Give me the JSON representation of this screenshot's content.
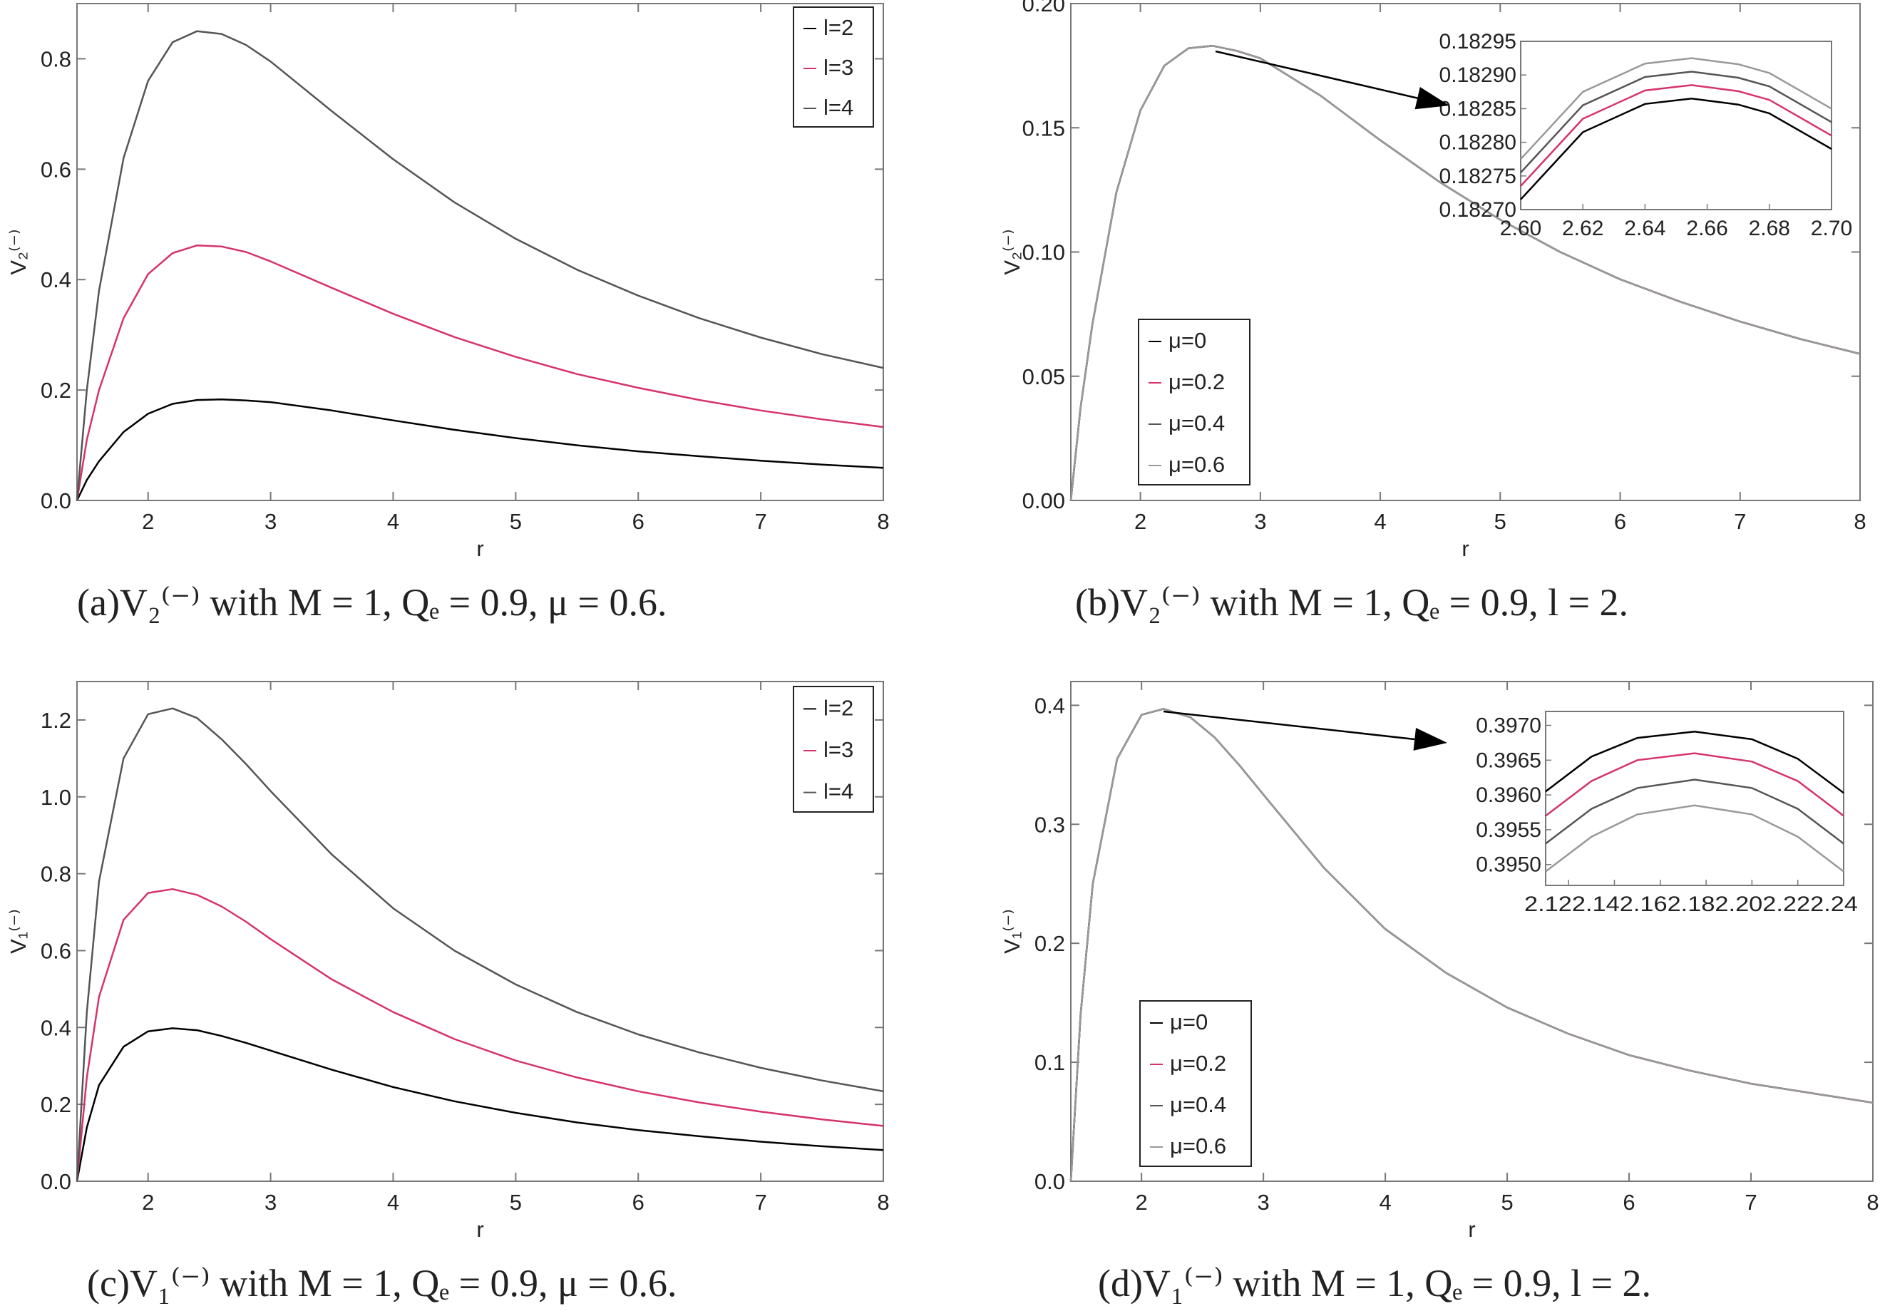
{
  "chart_data": [
    {
      "type": "line",
      "panel": "a",
      "caption": "(a)V₂⁽⁻⁾ with M = 1, Qₑ = 0.9, μ = 0.6.",
      "xlabel": "r",
      "ylabel": "V₂⁽⁻⁾",
      "xlim": [
        1.42,
        8
      ],
      "ylim": [
        0,
        0.9
      ],
      "xticks": [
        "2",
        "3",
        "4",
        "5",
        "6",
        "7",
        "8"
      ],
      "yticks": [
        "0.0",
        "0.2",
        "0.4",
        "0.6",
        "0.8"
      ],
      "legend_position": "top-right",
      "series": [
        {
          "name": "l=2",
          "color": "#000000",
          "x": [
            1.42,
            1.5,
            1.6,
            1.8,
            2.0,
            2.2,
            2.4,
            2.6,
            2.8,
            3.0,
            3.5,
            4.0,
            4.5,
            5.0,
            5.5,
            6.0,
            6.5,
            7.0,
            7.5,
            8.0
          ],
          "y": [
            0.0,
            0.037,
            0.071,
            0.124,
            0.157,
            0.175,
            0.182,
            0.183,
            0.181,
            0.178,
            0.163,
            0.145,
            0.128,
            0.113,
            0.1,
            0.089,
            0.08,
            0.072,
            0.065,
            0.059
          ]
        },
        {
          "name": "l=3",
          "color": "#d6336c",
          "x": [
            1.42,
            1.5,
            1.6,
            1.8,
            2.0,
            2.2,
            2.4,
            2.6,
            2.8,
            3.0,
            3.5,
            4.0,
            4.5,
            5.0,
            5.5,
            6.0,
            6.5,
            7.0,
            7.5,
            8.0
          ],
          "y": [
            0.0,
            0.11,
            0.2,
            0.33,
            0.41,
            0.448,
            0.462,
            0.46,
            0.45,
            0.433,
            0.385,
            0.338,
            0.296,
            0.26,
            0.229,
            0.204,
            0.182,
            0.163,
            0.147,
            0.133
          ]
        },
        {
          "name": "l=4",
          "color": "#555555",
          "x": [
            1.42,
            1.5,
            1.6,
            1.8,
            2.0,
            2.2,
            2.4,
            2.6,
            2.8,
            3.0,
            3.5,
            4.0,
            4.5,
            5.0,
            5.5,
            6.0,
            6.5,
            7.0,
            7.5,
            8.0
          ],
          "y": [
            0.0,
            0.2,
            0.38,
            0.62,
            0.76,
            0.83,
            0.85,
            0.845,
            0.825,
            0.795,
            0.705,
            0.618,
            0.54,
            0.474,
            0.418,
            0.371,
            0.33,
            0.295,
            0.265,
            0.24
          ]
        }
      ]
    },
    {
      "type": "line",
      "panel": "b",
      "caption": "(b)V₂⁽⁻⁾ with M = 1, Qₑ = 0.9, l = 2.",
      "xlabel": "r",
      "ylabel": "V₂⁽⁻⁾",
      "xlim": [
        1.42,
        8
      ],
      "ylim": [
        0,
        0.2
      ],
      "xticks": [
        "2",
        "3",
        "4",
        "5",
        "6",
        "7",
        "8"
      ],
      "yticks": [
        "0.00",
        "0.05",
        "0.10",
        "0.15",
        "0.20"
      ],
      "legend_position": "bottom-left",
      "series": [
        {
          "name": "μ=0",
          "color": "#000000",
          "x": [
            1.42,
            1.5,
            1.6,
            1.8,
            2.0,
            2.2,
            2.4,
            2.6,
            2.8,
            3.0,
            3.5,
            4.0,
            4.5,
            5.0,
            5.5,
            6.0,
            6.5,
            7.0,
            7.5,
            8.0
          ],
          "y": [
            0.0,
            0.037,
            0.071,
            0.124,
            0.157,
            0.175,
            0.182,
            0.183,
            0.181,
            0.178,
            0.163,
            0.145,
            0.128,
            0.113,
            0.1,
            0.089,
            0.08,
            0.072,
            0.065,
            0.059
          ]
        },
        {
          "name": "μ=0.2",
          "color": "#d6336c",
          "x": [
            1.42,
            1.5,
            1.6,
            1.8,
            2.0,
            2.2,
            2.4,
            2.6,
            2.8,
            3.0,
            3.5,
            4.0,
            4.5,
            5.0,
            5.5,
            6.0,
            6.5,
            7.0,
            7.5,
            8.0
          ],
          "y": [
            0.0,
            0.037,
            0.071,
            0.124,
            0.157,
            0.175,
            0.182,
            0.183,
            0.181,
            0.178,
            0.163,
            0.145,
            0.128,
            0.113,
            0.1,
            0.089,
            0.08,
            0.072,
            0.065,
            0.059
          ]
        },
        {
          "name": "μ=0.4",
          "color": "#555555",
          "x": [
            1.42,
            1.5,
            1.6,
            1.8,
            2.0,
            2.2,
            2.4,
            2.6,
            2.8,
            3.0,
            3.5,
            4.0,
            4.5,
            5.0,
            5.5,
            6.0,
            6.5,
            7.0,
            7.5,
            8.0
          ],
          "y": [
            0.0,
            0.037,
            0.071,
            0.124,
            0.157,
            0.175,
            0.182,
            0.183,
            0.181,
            0.178,
            0.163,
            0.145,
            0.128,
            0.113,
            0.1,
            0.089,
            0.08,
            0.072,
            0.065,
            0.059
          ]
        },
        {
          "name": "μ=0.6",
          "color": "#999999",
          "x": [
            1.42,
            1.5,
            1.6,
            1.8,
            2.0,
            2.2,
            2.4,
            2.6,
            2.8,
            3.0,
            3.5,
            4.0,
            4.5,
            5.0,
            5.5,
            6.0,
            6.5,
            7.0,
            7.5,
            8.0
          ],
          "y": [
            0.0,
            0.037,
            0.071,
            0.124,
            0.157,
            0.175,
            0.182,
            0.183,
            0.181,
            0.178,
            0.163,
            0.145,
            0.128,
            0.113,
            0.1,
            0.089,
            0.08,
            0.072,
            0.065,
            0.059
          ]
        }
      ],
      "inset": {
        "xlim": [
          2.6,
          2.7
        ],
        "ylim": [
          0.1827,
          0.18295
        ],
        "xticks": [
          "2.60",
          "2.62",
          "2.64",
          "2.66",
          "2.68",
          "2.70"
        ],
        "yticks": [
          "0.18270",
          "0.18275",
          "0.18280",
          "0.18285",
          "0.18290",
          "0.18295"
        ],
        "peak_x": 2.655,
        "series": [
          {
            "name": "μ=0",
            "color": "#000000",
            "x": [
              2.6,
              2.62,
              2.64,
              2.655,
              2.67,
              2.68,
              2.7
            ],
            "y": [
              0.182715,
              0.182815,
              0.182857,
              0.182865,
              0.182856,
              0.182843,
              0.18279
            ]
          },
          {
            "name": "μ=0.2",
            "color": "#d6336c",
            "x": [
              2.6,
              2.62,
              2.64,
              2.655,
              2.67,
              2.68,
              2.7
            ],
            "y": [
              0.182735,
              0.182835,
              0.182877,
              0.182885,
              0.182876,
              0.182863,
              0.18281
            ]
          },
          {
            "name": "μ=0.4",
            "color": "#555555",
            "x": [
              2.6,
              2.62,
              2.64,
              2.655,
              2.67,
              2.68,
              2.7
            ],
            "y": [
              0.182755,
              0.182855,
              0.182897,
              0.182905,
              0.182896,
              0.182883,
              0.18283
            ]
          },
          {
            "name": "μ=0.6",
            "color": "#999999",
            "x": [
              2.6,
              2.62,
              2.64,
              2.655,
              2.67,
              2.68,
              2.7
            ],
            "y": [
              0.182775,
              0.182875,
              0.182917,
              0.182925,
              0.182916,
              0.182903,
              0.18285
            ]
          }
        ]
      }
    },
    {
      "type": "line",
      "panel": "c",
      "caption": "(c)V₁⁽⁻⁾ with M = 1, Qₑ = 0.9, μ = 0.6.",
      "xlabel": "r",
      "ylabel": "V₁⁽⁻⁾",
      "xlim": [
        1.42,
        8
      ],
      "ylim": [
        0,
        1.3
      ],
      "xticks": [
        "2",
        "3",
        "4",
        "5",
        "6",
        "7",
        "8"
      ],
      "yticks": [
        "0.0",
        "0.2",
        "0.4",
        "0.6",
        "0.8",
        "1.0",
        "1.2"
      ],
      "legend_position": "top-right",
      "series": [
        {
          "name": "l=2",
          "color": "#000000",
          "x": [
            1.42,
            1.5,
            1.6,
            1.8,
            2.0,
            2.2,
            2.4,
            2.6,
            2.8,
            3.0,
            3.5,
            4.0,
            4.5,
            5.0,
            5.5,
            6.0,
            6.5,
            7.0,
            7.5,
            8.0
          ],
          "y": [
            0.0,
            0.14,
            0.25,
            0.35,
            0.39,
            0.398,
            0.393,
            0.378,
            0.36,
            0.34,
            0.29,
            0.245,
            0.208,
            0.178,
            0.153,
            0.133,
            0.117,
            0.103,
            0.091,
            0.081
          ]
        },
        {
          "name": "l=3",
          "color": "#d6336c",
          "x": [
            1.42,
            1.5,
            1.6,
            1.8,
            2.0,
            2.2,
            2.4,
            2.6,
            2.8,
            3.0,
            3.5,
            4.0,
            4.5,
            5.0,
            5.5,
            6.0,
            6.5,
            7.0,
            7.5,
            8.0
          ],
          "y": [
            0.0,
            0.27,
            0.48,
            0.68,
            0.75,
            0.76,
            0.745,
            0.715,
            0.675,
            0.63,
            0.525,
            0.44,
            0.37,
            0.314,
            0.27,
            0.234,
            0.205,
            0.181,
            0.161,
            0.144
          ]
        },
        {
          "name": "l=4",
          "color": "#555555",
          "x": [
            1.42,
            1.5,
            1.6,
            1.8,
            2.0,
            2.2,
            2.4,
            2.6,
            2.8,
            3.0,
            3.5,
            4.0,
            4.5,
            5.0,
            5.5,
            6.0,
            6.5,
            7.0,
            7.5,
            8.0
          ],
          "y": [
            0.0,
            0.44,
            0.78,
            1.1,
            1.215,
            1.23,
            1.205,
            1.15,
            1.085,
            1.015,
            0.85,
            0.71,
            0.6,
            0.512,
            0.44,
            0.382,
            0.335,
            0.295,
            0.262,
            0.234
          ]
        }
      ]
    },
    {
      "type": "line",
      "panel": "d",
      "caption": "(d)V₁⁽⁻⁾ with M = 1, Qₑ = 0.9, l = 2.",
      "xlabel": "r",
      "ylabel": "V₁⁽⁻⁾",
      "xlim": [
        1.42,
        8
      ],
      "ylim": [
        0,
        0.42
      ],
      "xticks": [
        "2",
        "3",
        "4",
        "5",
        "6",
        "7",
        "8"
      ],
      "yticks": [
        "0.0",
        "0.1",
        "0.2",
        "0.3",
        "0.4"
      ],
      "legend_position": "bottom-left",
      "series": [
        {
          "name": "μ=0",
          "color": "#000000",
          "x": [
            1.42,
            1.5,
            1.6,
            1.8,
            2.0,
            2.18,
            2.4,
            2.6,
            2.8,
            3.0,
            3.5,
            4.0,
            4.5,
            5.0,
            5.5,
            6.0,
            6.5,
            7.0,
            7.5,
            8.0
          ],
          "y": [
            0.0,
            0.14,
            0.25,
            0.355,
            0.392,
            0.397,
            0.39,
            0.373,
            0.35,
            0.325,
            0.263,
            0.212,
            0.175,
            0.146,
            0.124,
            0.106,
            0.093,
            0.082,
            0.074,
            0.066
          ]
        },
        {
          "name": "μ=0.2",
          "color": "#d6336c",
          "x": [
            1.42,
            1.5,
            1.6,
            1.8,
            2.0,
            2.18,
            2.4,
            2.6,
            2.8,
            3.0,
            3.5,
            4.0,
            4.5,
            5.0,
            5.5,
            6.0,
            6.5,
            7.0,
            7.5,
            8.0
          ],
          "y": [
            0.0,
            0.14,
            0.25,
            0.355,
            0.392,
            0.397,
            0.39,
            0.373,
            0.35,
            0.325,
            0.263,
            0.212,
            0.175,
            0.146,
            0.124,
            0.106,
            0.093,
            0.082,
            0.074,
            0.066
          ]
        },
        {
          "name": "μ=0.4",
          "color": "#555555",
          "x": [
            1.42,
            1.5,
            1.6,
            1.8,
            2.0,
            2.18,
            2.4,
            2.6,
            2.8,
            3.0,
            3.5,
            4.0,
            4.5,
            5.0,
            5.5,
            6.0,
            6.5,
            7.0,
            7.5,
            8.0
          ],
          "y": [
            0.0,
            0.14,
            0.25,
            0.355,
            0.392,
            0.397,
            0.39,
            0.373,
            0.35,
            0.325,
            0.263,
            0.212,
            0.175,
            0.146,
            0.124,
            0.106,
            0.093,
            0.082,
            0.074,
            0.066
          ]
        },
        {
          "name": "μ=0.6",
          "color": "#999999",
          "x": [
            1.42,
            1.5,
            1.6,
            1.8,
            2.0,
            2.18,
            2.4,
            2.6,
            2.8,
            3.0,
            3.5,
            4.0,
            4.5,
            5.0,
            5.5,
            6.0,
            6.5,
            7.0,
            7.5,
            8.0
          ],
          "y": [
            0.0,
            0.14,
            0.25,
            0.355,
            0.392,
            0.397,
            0.39,
            0.373,
            0.35,
            0.325,
            0.263,
            0.212,
            0.175,
            0.146,
            0.124,
            0.106,
            0.093,
            0.082,
            0.074,
            0.066
          ]
        }
      ],
      "inset": {
        "xlim": [
          2.11,
          2.24
        ],
        "ylim": [
          0.3947,
          0.3972
        ],
        "xticks": [
          "2.12",
          "2.14",
          "2.16",
          "2.18",
          "2.20",
          "2.22",
          "2.24"
        ],
        "tick_label_text": "2.122.142.162.182.202.222.24",
        "yticks": [
          "0.3950",
          "0.3955",
          "0.3960",
          "0.3965",
          "0.3970"
        ],
        "series": [
          {
            "name": "μ=0",
            "color": "#000000",
            "x": [
              2.11,
              2.13,
              2.15,
              2.175,
              2.2,
              2.22,
              2.24
            ],
            "y": [
              0.39605,
              0.39655,
              0.39682,
              0.39691,
              0.3968,
              0.39652,
              0.39603
            ]
          },
          {
            "name": "μ=0.2",
            "color": "#d6336c",
            "x": [
              2.11,
              2.13,
              2.15,
              2.175,
              2.2,
              2.22,
              2.24
            ],
            "y": [
              0.3957,
              0.3962,
              0.3965,
              0.3966,
              0.39648,
              0.3962,
              0.3957
            ]
          },
          {
            "name": "μ=0.4",
            "color": "#555555",
            "x": [
              2.11,
              2.13,
              2.15,
              2.175,
              2.2,
              2.22,
              2.24
            ],
            "y": [
              0.3953,
              0.3958,
              0.3961,
              0.39622,
              0.3961,
              0.3958,
              0.3953
            ]
          },
          {
            "name": "μ=0.6",
            "color": "#999999",
            "x": [
              2.11,
              2.13,
              2.15,
              2.175,
              2.2,
              2.22,
              2.24
            ],
            "y": [
              0.3949,
              0.3954,
              0.39572,
              0.39585,
              0.39572,
              0.3954,
              0.3949
            ]
          }
        ]
      }
    }
  ]
}
